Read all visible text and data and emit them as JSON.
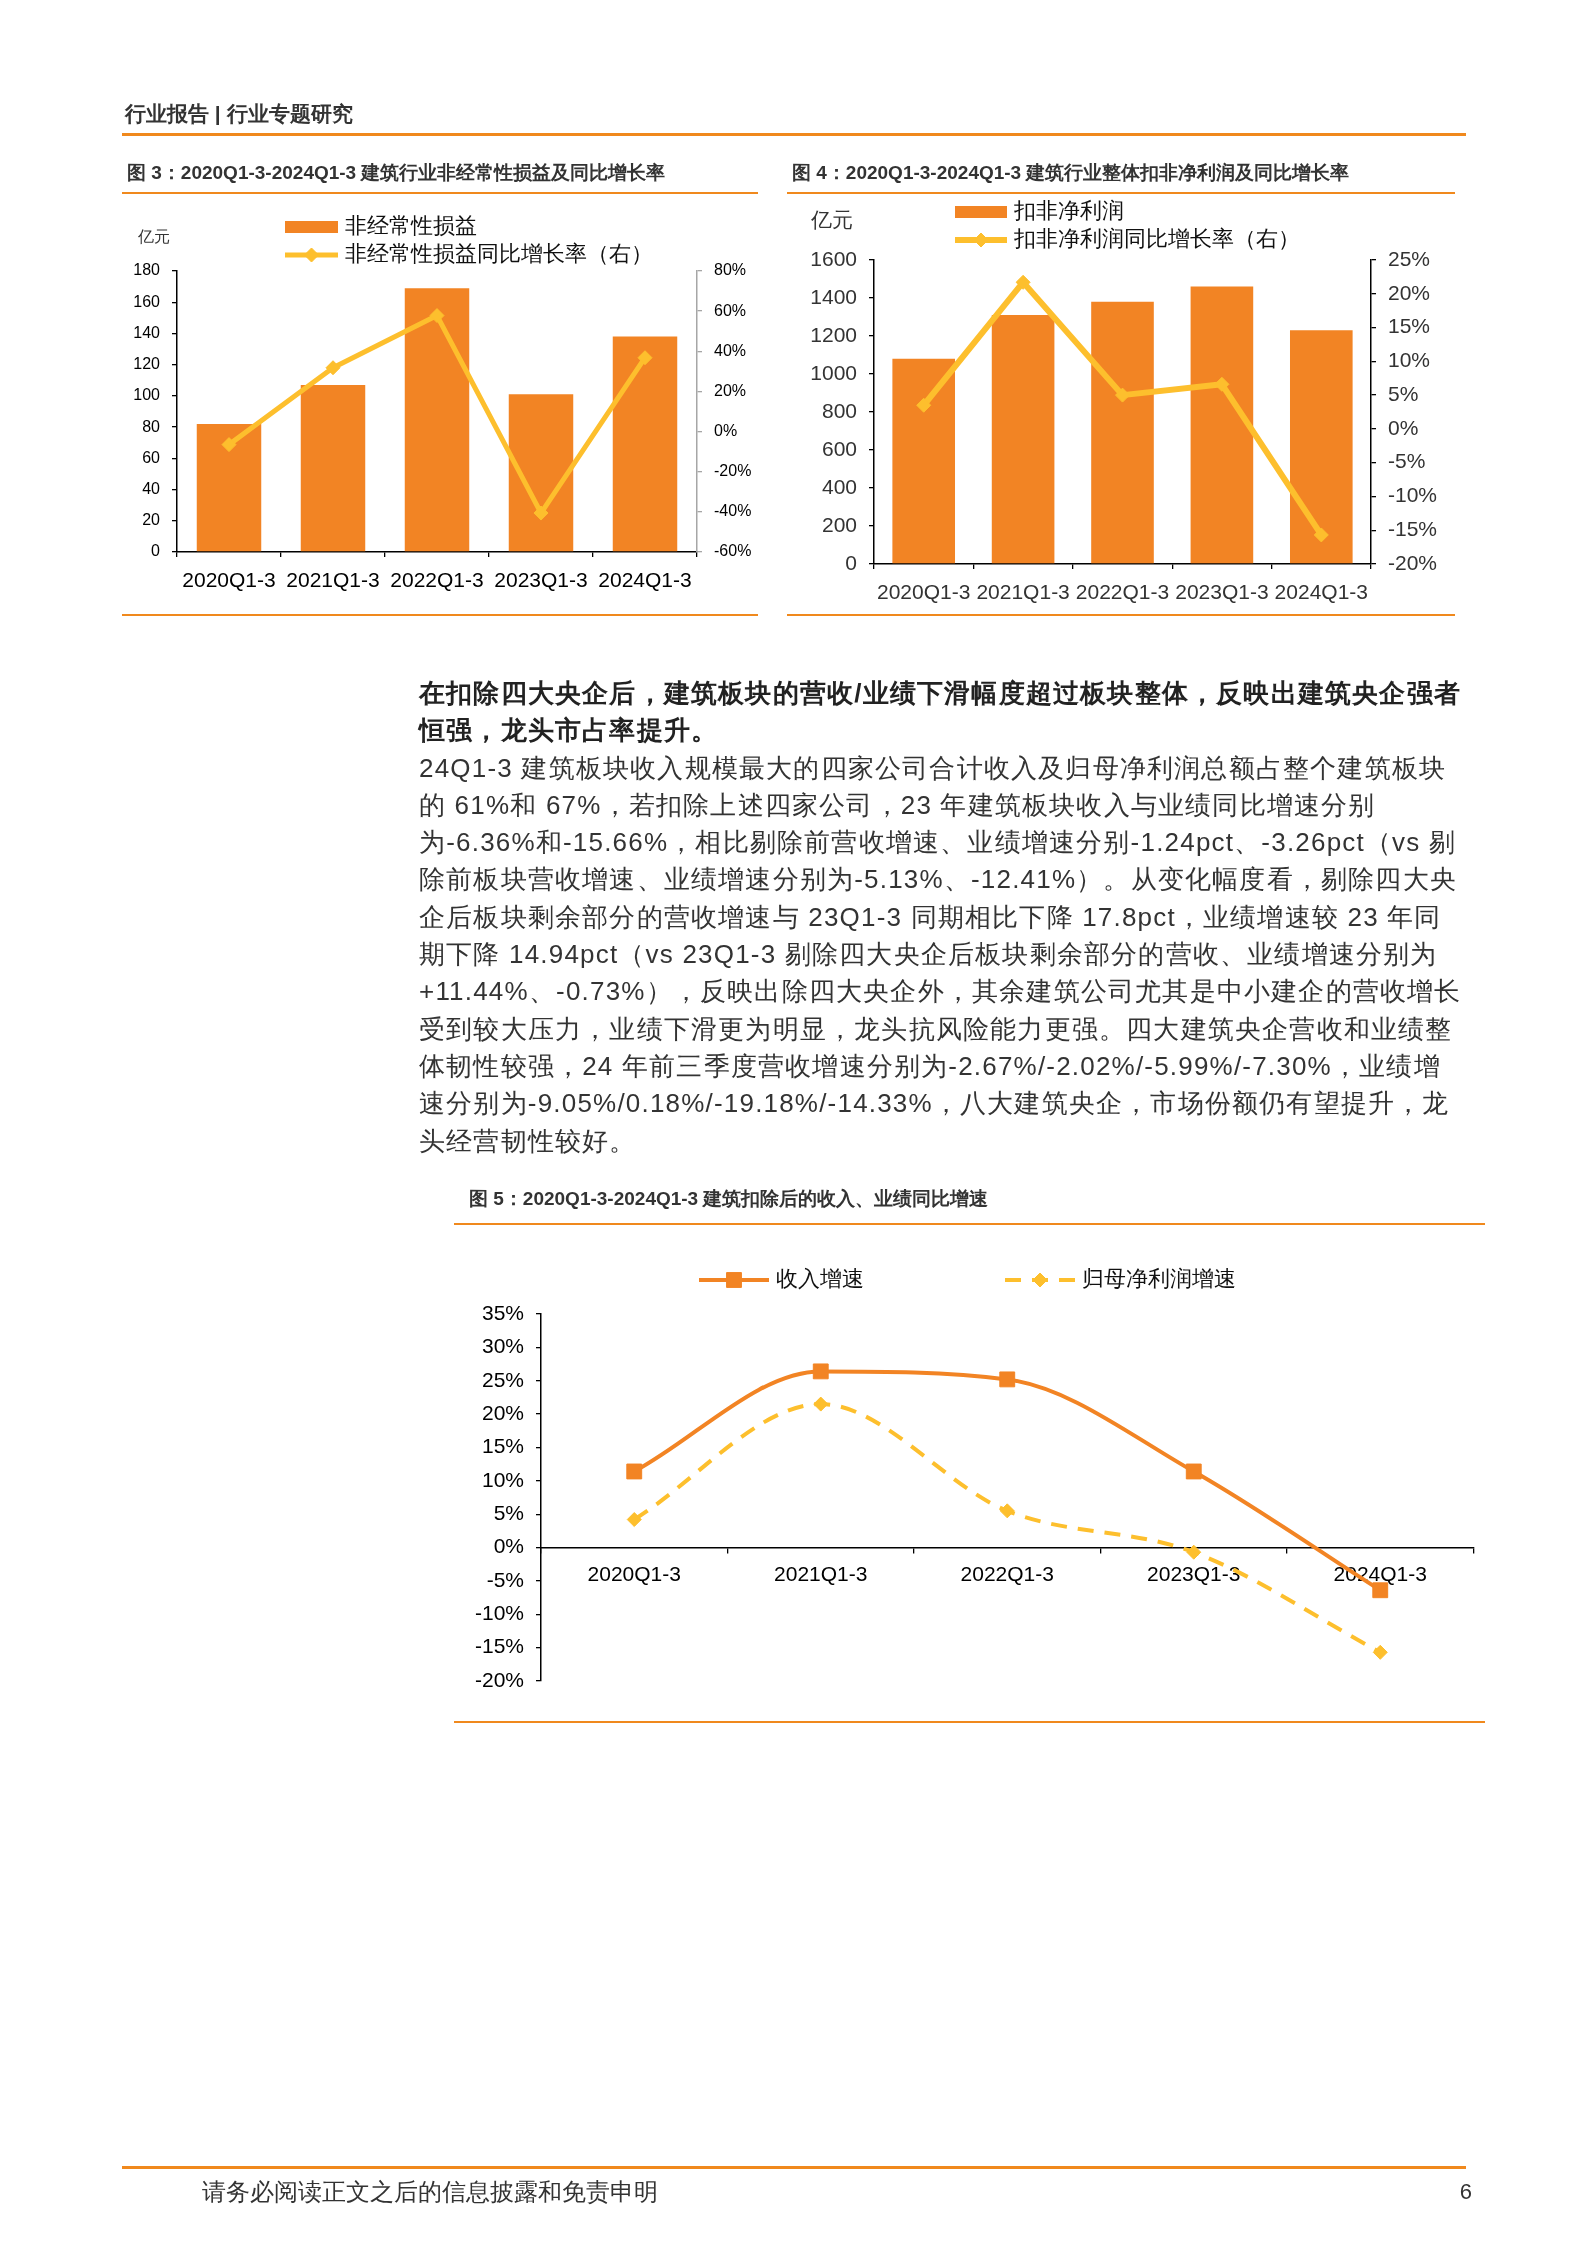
{
  "chart_data": [
    {
      "type": "other",
      "title": "行业报告 | 行业专题研究"
    },
    {
      "type": "bar",
      "title": "图 3：2020Q1-3-2024Q1-3 建筑行业非经常性损益及同比增长率",
      "ylabel": "亿元",
      "categories": [
        "2020Q1-3",
        "2021Q1-3",
        "2022Q1-3",
        "2023Q1-3",
        "2024Q1-3"
      ],
      "series": [
        {
          "name": "非经常性损益",
          "color": "#f28424",
          "values": [
            82,
            107,
            169,
            101,
            138
          ]
        },
        {
          "name": "非经常性损益同比增长率（右）",
          "type": "line",
          "axis": "y2",
          "color": "#fdbf2d",
          "marker": "diamond",
          "values": [
            -6.5,
            31.8,
            57.8,
            -40.6,
            36.8
          ]
        }
      ],
      "ylim": [
        0,
        180
      ],
      "yticks": [
        0,
        20,
        40,
        60,
        80,
        100,
        120,
        140,
        160,
        180
      ],
      "y2lim": [
        -60,
        80
      ],
      "y2ticks": [
        {
          "value": -60,
          "label": "-60%"
        },
        {
          "value": -40,
          "label": "-40%"
        },
        {
          "value": -20,
          "label": "-20%"
        },
        {
          "value": 0,
          "label": "0%"
        },
        {
          "value": 20,
          "label": "20%"
        },
        {
          "value": 40,
          "label": "40%"
        },
        {
          "value": 60,
          "label": "60%"
        },
        {
          "value": 80,
          "label": "80%"
        }
      ],
      "legend": "top"
    },
    {
      "type": "bar",
      "title": "图 4：2020Q1-3-2024Q1-3 建筑行业整体扣非净利润及同比增长率",
      "ylabel": "亿元",
      "categories": [
        "2020Q1-3",
        "2021Q1-3",
        "2022Q1-3",
        "2023Q1-3",
        "2024Q1-3"
      ],
      "series": [
        {
          "name": "扣非净利润",
          "color": "#f28424",
          "values": [
            1080,
            1310,
            1380,
            1460,
            1230
          ]
        },
        {
          "name": "扣非净利润同比增长率（右）",
          "type": "line",
          "axis": "y2",
          "color": "#fdbf2d",
          "marker": "diamond",
          "values": [
            3.5,
            21.7,
            5.0,
            6.6,
            -15.7
          ]
        }
      ],
      "ylim": [
        0,
        1600
      ],
      "yticks": [
        0,
        200,
        400,
        600,
        800,
        1000,
        1200,
        1400,
        1600
      ],
      "y2lim": [
        -20,
        25
      ],
      "y2ticks": [
        {
          "value": -20,
          "label": "-20%"
        },
        {
          "value": -15,
          "label": "-15%"
        },
        {
          "value": -10,
          "label": "-10%"
        },
        {
          "value": -5,
          "label": "-5%"
        },
        {
          "value": 0,
          "label": "0%"
        },
        {
          "value": 5,
          "label": "5%"
        },
        {
          "value": 10,
          "label": "10%"
        },
        {
          "value": 15,
          "label": "15%"
        },
        {
          "value": 20,
          "label": "20%"
        },
        {
          "value": 25,
          "label": "25%"
        }
      ],
      "legend": "top"
    },
    {
      "type": "other",
      "title": "在扣除四大央企后，建筑板块的营收/业绩下滑幅度超过板块整体，反映出建筑央企强者恒强，龙头市占率提升。",
      "annotations": [
        "24Q1-3 建筑板块收入规模最大的四家公司合计收入及归母净利润总额占整个建筑板块的 61%和 67%，若扣除上述四家公司，23 年建筑板块收入与业绩同比增速分别为-6.36%和-15.66%，相比剔除前营收增速、业绩增速分别-1.24pct、-3.26pct（vs 剔除前板块营收增速、业绩增速分别为-5.13%、-12.41%）。从变化幅度看，剔除四大央企后板块剩余部分的营收增速与 23Q1-3 同期相比下降 17.8pct，业绩增速较 23 年同期下降 14.94pct（vs 23Q1-3 剔除四大央企后板块剩余部分的营收、业绩增速分别为+11.44%、-0.73%），反映出除四大央企外，其余建筑公司尤其是中小建企的营收增长受到较大压力，业绩下滑更为明显，龙头抗风险能力更强。四大建筑央企营收和业绩整体韧性较强，24 年前三季度营收增速分别为-2.67%/-2.02%/-5.99%/-7.30%，业绩增速分别为-9.05%/0.18%/-19.18%/-14.33%，八大建筑央企，市场份额仍有望提升，龙头经营韧性较好。"
      ]
    },
    {
      "type": "line",
      "title": "图 5：2020Q1-3-2024Q1-3 建筑扣除后的收入、业绩同比增速",
      "categories": [
        "2020Q1-3",
        "2021Q1-3",
        "2022Q1-3",
        "2023Q1-3",
        "2024Q1-3"
      ],
      "series": [
        {
          "name": "收入增速",
          "color": "#f28424",
          "marker": "square",
          "line_style": "solid",
          "values": [
            11.4,
            26.4,
            25.2,
            11.4,
            -6.4
          ]
        },
        {
          "name": "归母净利润增速",
          "color": "#fdbf2d",
          "marker": "diamond",
          "line_style": "dashed",
          "values": [
            4.2,
            21.5,
            5.5,
            -0.7,
            -15.7
          ]
        }
      ],
      "ylim": [
        -20,
        35
      ],
      "yticks": [
        {
          "value": -20,
          "label": "-20%"
        },
        {
          "value": -15,
          "label": "-15%"
        },
        {
          "value": -10,
          "label": "-10%"
        },
        {
          "value": -5,
          "label": "-5%"
        },
        {
          "value": 0,
          "label": "0%"
        },
        {
          "value": 5,
          "label": "5%"
        },
        {
          "value": 10,
          "label": "10%"
        },
        {
          "value": 15,
          "label": "15%"
        },
        {
          "value": 20,
          "label": "20%"
        },
        {
          "value": 25,
          "label": "25%"
        },
        {
          "value": 30,
          "label": "30%"
        },
        {
          "value": 35,
          "label": "35%"
        }
      ],
      "legend": "top"
    },
    {
      "type": "other",
      "annotations": [
        "请务必阅读正文之后的信息披露和免责申明",
        "6"
      ]
    }
  ]
}
